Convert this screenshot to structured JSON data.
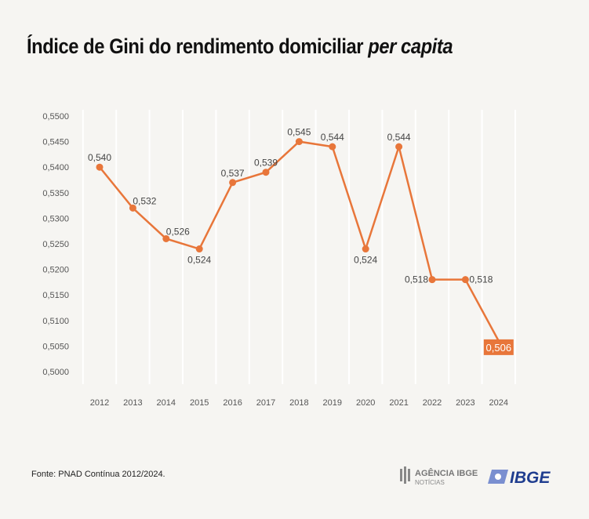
{
  "chart_data": {
    "type": "line",
    "title": "Índice de Gini do rendimento domiciliar",
    "title_italic": "per capita",
    "categories": [
      "2012",
      "2013",
      "2014",
      "2015",
      "2016",
      "2017",
      "2018",
      "2019",
      "2020",
      "2021",
      "2022",
      "2023",
      "2024"
    ],
    "values": [
      0.54,
      0.532,
      0.526,
      0.524,
      0.537,
      0.539,
      0.545,
      0.544,
      0.524,
      0.544,
      0.518,
      0.518,
      0.506
    ],
    "labels": [
      "0,540",
      "0,532",
      "0,526",
      "0,524",
      "0,537",
      "0,539",
      "0,545",
      "0,544",
      "0,524",
      "0,544",
      "0,518",
      "0,518",
      "0,506"
    ],
    "yticks": [
      "0,5000",
      "0,5050",
      "0,5100",
      "0,5150",
      "0,5200",
      "0,5250",
      "0,5300",
      "0,5350",
      "0,5400",
      "0,5450",
      "0,5500"
    ],
    "ylim": [
      0.5,
      0.55
    ],
    "grid": "vertical",
    "line_color": "#e8763a",
    "highlight_color": "#e8763a"
  },
  "source": "Fonte: PNAD Contínua 2012/2024.",
  "logos": {
    "agencia": "AGÊNCIA IBGE",
    "noticias": "NOTÍCIAS",
    "ibge": "IBGE"
  }
}
